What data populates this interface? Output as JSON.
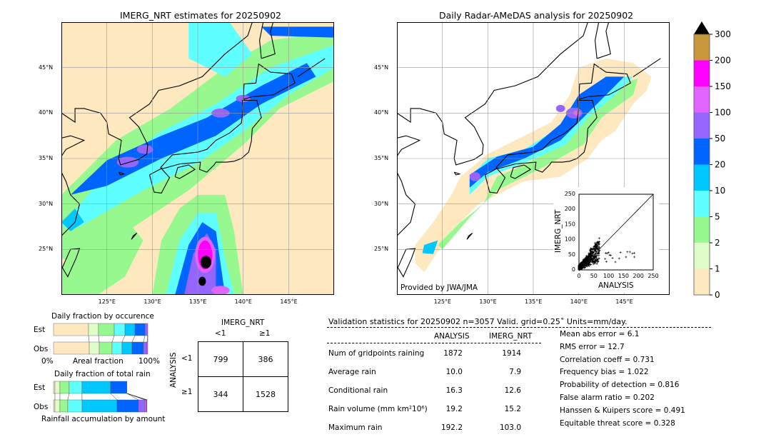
{
  "left_map": {
    "title": "IMERG_NRT estimates for 20250902",
    "lat_labels": [
      "45°N",
      "40°N",
      "35°N",
      "30°N",
      "25°N"
    ],
    "lon_labels": [
      "125°E",
      "130°E",
      "135°E",
      "140°E",
      "145°E"
    ]
  },
  "right_map": {
    "title": "Daily Radar-AMeDAS analysis for 20250902",
    "lat_labels": [
      "45°N",
      "40°N",
      "35°N",
      "30°N",
      "25°N"
    ],
    "lon_labels": [
      "125°E",
      "130°E",
      "135°E",
      "140°E",
      "145°E"
    ],
    "credit": "Provided by JWA/JMA"
  },
  "colorbar": {
    "ticks": [
      "0",
      "1",
      "2",
      "5",
      "10",
      "20",
      "50",
      "100",
      "150",
      "200",
      "300"
    ],
    "colors": [
      "#fee8c0",
      "#e0fcc8",
      "#98f890",
      "#60ffff",
      "#00c8ff",
      "#0064ff",
      "#9664ff",
      "#e164ff",
      "#ff00ff",
      "#c8963c"
    ],
    "extend_color": "#000000"
  },
  "chart_data": [
    {
      "type": "scatter",
      "title": "",
      "xlabel": "ANALYSIS",
      "ylabel": "IMERG_NRT",
      "xlim": [
        0,
        250
      ],
      "ylim": [
        0,
        250
      ],
      "x_ticks": [
        "0",
        "50",
        "100",
        "150",
        "200",
        "250"
      ],
      "y_ticks": [
        "0",
        "50",
        "100",
        "150",
        "200",
        "250"
      ],
      "note": "dense cluster of points mostly below 100 mm on both axes; outliers up to ~190 analysis, ~105 IMERG; 1:1 reference line"
    },
    {
      "type": "bar",
      "title": "Daily fraction by occurence",
      "xlabel": "Areal fraction",
      "x_left_label": "0%",
      "x_right_label": "100%",
      "categories": [
        "Est",
        "Obs"
      ],
      "bins": [
        "0-1",
        "1-2",
        "2-5",
        "5-10",
        "10-20",
        "20-50",
        "50-100",
        "100-150"
      ],
      "series": [
        {
          "name": "Est",
          "values": [
            37.1,
            10.6,
            16.7,
            11.4,
            10.6,
            10.6,
            3.0,
            0
          ]
        },
        {
          "name": "Obs",
          "values": [
            37.9,
            10.6,
            13.6,
            10.6,
            10.6,
            12.1,
            3.8,
            0.8
          ]
        }
      ]
    },
    {
      "type": "bar",
      "title": "Daily fraction of total rain",
      "xlabel": "Rainfall accumulation by amount",
      "categories": [
        "Est",
        "Obs"
      ],
      "bins": [
        "0-1",
        "1-2",
        "2-5",
        "5-10",
        "10-20",
        "20-50",
        "50-100",
        "100-150",
        "150-200",
        "200-300"
      ],
      "series": [
        {
          "name": "Est",
          "values": [
            1.5,
            5.3,
            9.8,
            13.6,
            30.3,
            17.4,
            0,
            0,
            0,
            0
          ]
        },
        {
          "name": "Obs",
          "values": [
            1.5,
            5.3,
            8.3,
            15.2,
            37.1,
            22.7,
            6.8,
            1.5,
            0.8,
            0
          ]
        }
      ]
    }
  ],
  "contingency": {
    "col_title": "IMERG_NRT",
    "row_title": "ANALYSIS",
    "col_labels": [
      "<1",
      "≥1"
    ],
    "row_labels": [
      "<1",
      "≥1"
    ],
    "cells": [
      [
        "799",
        "386"
      ],
      [
        "344",
        "1528"
      ]
    ]
  },
  "stats": {
    "header": "Validation statistics for 20250902  n=3057 Valid. grid=0.25˚ Units=mm/day.",
    "col_headers": [
      "ANALYSIS",
      "IMERG_NRT"
    ],
    "rows": [
      {
        "label": "Num of gridpoints raining",
        "a": "1872",
        "b": "1914"
      },
      {
        "label": "Average rain",
        "a": "10.0",
        "b": "7.9"
      },
      {
        "label": "Conditional rain",
        "a": "16.3",
        "b": "12.6"
      },
      {
        "label": "Rain volume (mm km²10⁶)",
        "a": "19.2",
        "b": "15.2"
      },
      {
        "label": "Maximum rain",
        "a": "192.2",
        "b": "103.0"
      }
    ],
    "scores": [
      "Mean abs error =    6.1",
      "RMS error =   12.7",
      "Correlation coeff =  0.731",
      "Frequency bias =  1.022",
      "Probability of detection =  0.816",
      "False alarm ratio =  0.202",
      "Hanssen & Kuipers score =  0.491",
      "Equitable threat score =  0.328"
    ]
  }
}
